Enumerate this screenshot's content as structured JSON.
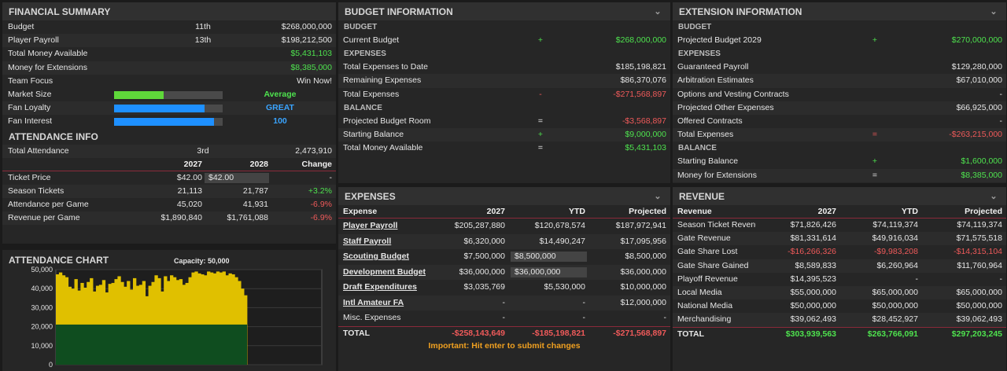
{
  "fin": {
    "title": "FINANCIAL SUMMARY",
    "rows": [
      {
        "label": "Budget",
        "rank": "11th",
        "value": "$268,000,000",
        "vc": ""
      },
      {
        "label": "Player Payroll",
        "rank": "13th",
        "value": "$198,212,500",
        "vc": ""
      },
      {
        "label": "Total Money Available",
        "rank": "",
        "value": "$5,431,103",
        "vc": "g"
      },
      {
        "label": "Money for Extensions",
        "rank": "",
        "value": "$8,385,000",
        "vc": "g"
      },
      {
        "label": "Team Focus",
        "rank": "",
        "value": "Win Now!",
        "vc": ""
      }
    ],
    "bars": [
      {
        "label": "Market Size",
        "level": 0.46,
        "color": "#5fd83a",
        "text": "Average",
        "tc": "g"
      },
      {
        "label": "Fan Loyalty",
        "level": 0.83,
        "color": "#1e90ff",
        "text": "GREAT",
        "tc": "b"
      },
      {
        "label": "Fan Interest",
        "level": 0.92,
        "color": "#1e90ff",
        "text": "100",
        "tc": "b"
      }
    ]
  },
  "att": {
    "title": "ATTENDANCE INFO",
    "total_label": "Total Attendance",
    "total_rank": "3rd",
    "total_value": "2,473,910",
    "h1": "2027",
    "h2": "2028",
    "h3": "Change",
    "rows": [
      {
        "label": "Ticket Price",
        "a": "$42.00",
        "b": "$42.00",
        "c": "-",
        "cc": "",
        "input": true
      },
      {
        "label": "Season Tickets",
        "a": "21,113",
        "b": "21,787",
        "c": "+3.2%",
        "cc": "g"
      },
      {
        "label": "Attendance per Game",
        "a": "45,020",
        "b": "41,931",
        "c": "-6.9%",
        "cc": "r"
      },
      {
        "label": "Revenue per Game",
        "a": "$1,890,840",
        "b": "$1,761,088",
        "c": "-6.9%",
        "cc": "r"
      }
    ]
  },
  "chart": {
    "title": "ATTENDANCE CHART",
    "capacity": "Capacity: 50,000"
  },
  "chart_data": {
    "type": "bar",
    "ylim": [
      0,
      50000
    ],
    "yticks": [
      "50,000",
      "40,000",
      "30,000",
      "20,000",
      "10,000",
      "0"
    ],
    "season_tickets": 21113,
    "values": [
      47500,
      48500,
      47000,
      46000,
      41000,
      40000,
      45000,
      39000,
      43000,
      40500,
      43500,
      45500,
      38500,
      41500,
      42000,
      44500,
      38000,
      42500,
      43000,
      45000,
      46500,
      43500,
      41000,
      44000,
      39500,
      45500,
      41500,
      42000,
      44000,
      36000,
      41500,
      43500,
      47000,
      45500,
      38500,
      46500,
      44000,
      47000,
      46000,
      44500,
      45000,
      42000,
      43000,
      46000,
      48500,
      49000,
      48000,
      47500,
      47000,
      49000,
      48500,
      48000,
      49000,
      48500,
      49000,
      47000,
      48000,
      47500,
      46000,
      44000,
      40000,
      36500
    ]
  },
  "budget": {
    "title": "BUDGET INFORMATION",
    "s1": "BUDGET",
    "s2": "EXPENSES",
    "s3": "BALANCE",
    "rows1": [
      {
        "label": "Current Budget",
        "op": "+",
        "opc": "g",
        "value": "$268,000,000",
        "vc": "g"
      }
    ],
    "rows2": [
      {
        "label": "Total Expenses to Date",
        "op": "",
        "opc": "",
        "value": "$185,198,821",
        "vc": ""
      },
      {
        "label": "Remaining Expenses",
        "op": "",
        "opc": "",
        "value": "$86,370,076",
        "vc": ""
      },
      {
        "label": "Total Expenses",
        "op": "-",
        "opc": "r",
        "value": "-$271,568,897",
        "vc": "r"
      }
    ],
    "rows3": [
      {
        "label": "Projected Budget Room",
        "op": "=",
        "opc": "",
        "value": "-$3,568,897",
        "vc": "r"
      },
      {
        "label": "Starting Balance",
        "op": "+",
        "opc": "g",
        "value": "$9,000,000",
        "vc": "g"
      },
      {
        "label": "Total Money Available",
        "op": "=",
        "opc": "",
        "value": "$5,431,103",
        "vc": "g"
      }
    ]
  },
  "ext": {
    "title": "EXTENSION INFORMATION",
    "s1": "BUDGET",
    "s2": "EXPENSES",
    "s3": "BALANCE",
    "rows1": [
      {
        "label": "Projected Budget 2029",
        "op": "+",
        "opc": "g",
        "value": "$270,000,000",
        "vc": "g"
      }
    ],
    "rows2": [
      {
        "label": "Guaranteed Payroll",
        "op": "",
        "opc": "",
        "value": "$129,280,000",
        "vc": ""
      },
      {
        "label": "Arbitration Estimates",
        "op": "",
        "opc": "",
        "value": "$67,010,000",
        "vc": ""
      },
      {
        "label": "Options and Vesting Contracts",
        "op": "",
        "opc": "",
        "value": "-",
        "vc": ""
      },
      {
        "label": "Projected Other Expenses",
        "op": "",
        "opc": "",
        "value": "$66,925,000",
        "vc": ""
      },
      {
        "label": "Offered Contracts",
        "op": "",
        "opc": "",
        "value": "-",
        "vc": ""
      },
      {
        "label": "Total Expenses",
        "op": "=",
        "opc": "r",
        "value": "-$263,215,000",
        "vc": "r"
      }
    ],
    "rows3": [
      {
        "label": "Starting Balance",
        "op": "+",
        "opc": "g",
        "value": "$1,600,000",
        "vc": "g"
      },
      {
        "label": "Money for Extensions",
        "op": "=",
        "opc": "",
        "value": "$8,385,000",
        "vc": "g"
      }
    ]
  },
  "exp": {
    "title": "EXPENSES",
    "h0": "Expense",
    "h1": "2027",
    "h2": "YTD",
    "h3": "Projected",
    "rows": [
      {
        "label": "Player Payroll",
        "a": "$205,287,880",
        "b": "$120,678,574",
        "c": "$187,972,941",
        "link": true
      },
      {
        "label": "Staff Payroll",
        "a": "$6,320,000",
        "b": "$14,490,247",
        "c": "$17,095,956",
        "link": true
      },
      {
        "label": "Scouting Budget",
        "a": "$7,500,000",
        "b": "$8,500,000",
        "c": "$8,500,000",
        "link": true,
        "input": true
      },
      {
        "label": "Development Budget",
        "a": "$36,000,000",
        "b": "$36,000,000",
        "c": "$36,000,000",
        "link": true,
        "input": true
      },
      {
        "label": "Draft Expenditures",
        "a": "$3,035,769",
        "b": "$5,530,000",
        "c": "$10,000,000",
        "link": true
      },
      {
        "label": "Intl Amateur FA",
        "a": "-",
        "b": "-",
        "c": "$12,000,000",
        "link": true
      },
      {
        "label": "Misc. Expenses",
        "a": "-",
        "b": "-",
        "c": "-",
        "link": false
      }
    ],
    "total": {
      "label": "TOTAL",
      "a": "-$258,143,649",
      "b": "-$185,198,821",
      "c": "-$271,568,897"
    },
    "note": "Important: Hit enter to submit changes"
  },
  "rev": {
    "title": "REVENUE",
    "h0": "Revenue",
    "h1": "2027",
    "h2": "YTD",
    "h3": "Projected",
    "rows": [
      {
        "label": "Season Ticket Revenu",
        "a": "$71,826,426",
        "b": "$74,119,374",
        "c": "$74,119,374",
        "ac": "",
        "bc": "",
        "cc": ""
      },
      {
        "label": "Gate Revenue",
        "a": "$81,331,614",
        "b": "$49,916,034",
        "c": "$71,575,518",
        "ac": "",
        "bc": "",
        "cc": ""
      },
      {
        "label": "Gate Share Lost",
        "a": "-$16,266,326",
        "b": "-$9,983,208",
        "c": "-$14,315,104",
        "ac": "r",
        "bc": "r",
        "cc": "r"
      },
      {
        "label": "Gate Share Gained",
        "a": "$8,589,833",
        "b": "$6,260,964",
        "c": "$11,760,964",
        "ac": "",
        "bc": "",
        "cc": ""
      },
      {
        "label": "Playoff Revenue",
        "a": "$14,395,523",
        "b": "-",
        "c": "-",
        "ac": "",
        "bc": "",
        "cc": ""
      },
      {
        "label": "Local Media",
        "a": "$55,000,000",
        "b": "$65,000,000",
        "c": "$65,000,000",
        "ac": "",
        "bc": "",
        "cc": ""
      },
      {
        "label": "National Media",
        "a": "$50,000,000",
        "b": "$50,000,000",
        "c": "$50,000,000",
        "ac": "",
        "bc": "",
        "cc": ""
      },
      {
        "label": "Merchandising",
        "a": "$39,062,493",
        "b": "$28,452,927",
        "c": "$39,062,493",
        "ac": "",
        "bc": "",
        "cc": ""
      }
    ],
    "total": {
      "label": "TOTAL",
      "a": "$303,939,563",
      "b": "$263,766,091",
      "c": "$297,203,245"
    }
  }
}
